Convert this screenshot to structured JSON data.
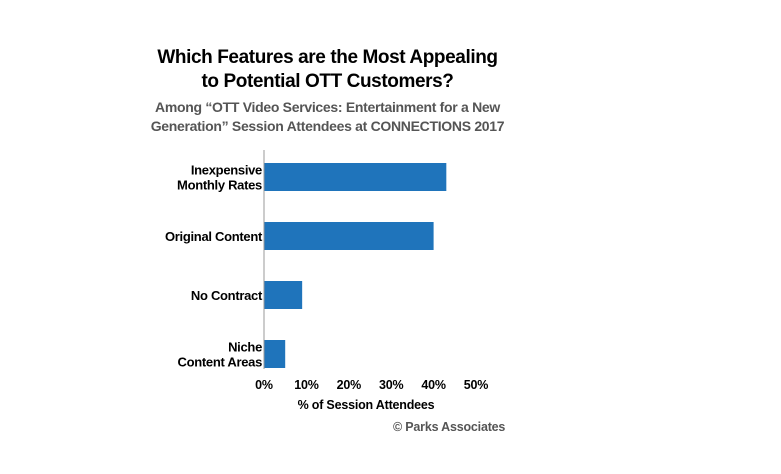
{
  "header": {
    "title_line1": "Which Features are the Most Appealing",
    "title_line2": "to Potential OTT Customers?",
    "subtitle_line1": "Among “OTT Video Services: Entertainment for a New",
    "subtitle_line2": "Generation” Session Attendees at CONNECTIONS 2017"
  },
  "footer": {
    "copyright": "© Parks Associates"
  },
  "colors": {
    "bar": "#1f74bb",
    "axis": "#999999",
    "text": "#000000",
    "subtitle": "#555555"
  },
  "chart_data": {
    "type": "bar",
    "orientation": "horizontal",
    "categories": [
      [
        "Inexpensive",
        "Monthly Rates"
      ],
      [
        "Original Content"
      ],
      [
        "No Contract"
      ],
      [
        "Niche",
        "Content Areas"
      ]
    ],
    "values": [
      43,
      40,
      9,
      5
    ],
    "xlim": [
      0,
      50
    ],
    "xticks": [
      0,
      10,
      20,
      30,
      40,
      50
    ],
    "tick_labels": [
      "0%",
      "10%",
      "20%",
      "30%",
      "40%",
      "50%"
    ],
    "xlabel": "% of Session Attendees",
    "ylabel": "",
    "grid": false,
    "legend": "none"
  }
}
